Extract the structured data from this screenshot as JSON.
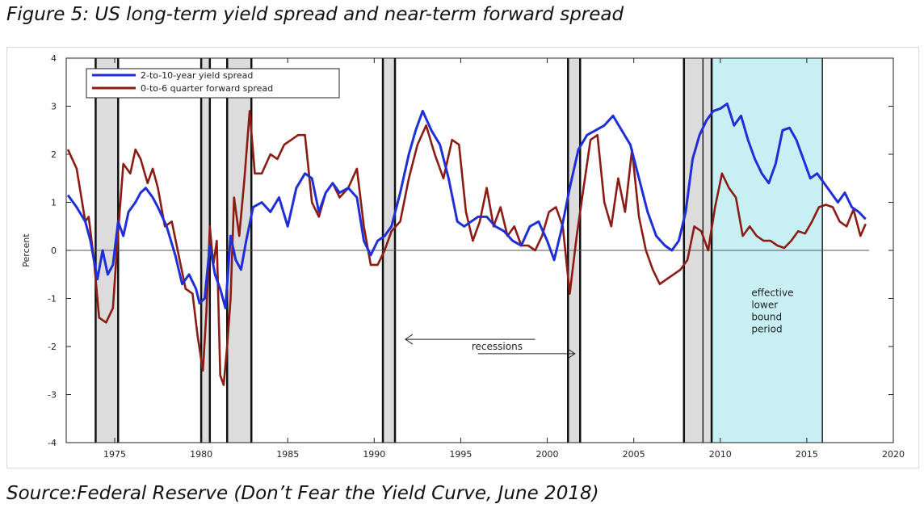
{
  "figure_title": "Figure 5: US long-term yield spread and near-term forward spread",
  "source": "Source:Federal Reserve (Don’t Fear the Yield Curve, June 2018)",
  "colors": {
    "yield_spread": "#1f2fd6",
    "forward_spread": "#8b1c14",
    "elb_shade": "#c8f0f4",
    "recession_shade": "#dcdcdc"
  },
  "chart_data": {
    "type": "line",
    "ylabel": "Percent",
    "xlabel": "",
    "xlim": [
      1972.2,
      2020
    ],
    "ylim": [
      -4,
      4
    ],
    "x_ticks": [
      1975,
      1980,
      1985,
      1990,
      1995,
      2000,
      2005,
      2010,
      2015,
      2020
    ],
    "y_ticks": [
      4,
      3,
      2,
      1,
      0,
      -1,
      -2,
      -3,
      -4
    ],
    "grid": false,
    "legend_position": "top-left",
    "recessions": [
      [
        1973.9,
        1975.2
      ],
      [
        1980.0,
        1980.5
      ],
      [
        1981.5,
        1982.9
      ],
      [
        1990.5,
        1991.2
      ],
      [
        2001.2,
        2001.9
      ],
      [
        2007.9,
        2009.5
      ]
    ],
    "effective_lower_bound": [
      2009.0,
      2015.9
    ],
    "annotations": {
      "recessions_label": "recessions",
      "elb_label_lines": [
        "effective",
        "lower",
        "bound",
        "period"
      ]
    },
    "series": [
      {
        "name": "2-to-10-year yield spread",
        "x": [
          1972.3,
          1972.8,
          1973.3,
          1973.6,
          1974.0,
          1974.3,
          1974.6,
          1974.9,
          1975.2,
          1975.5,
          1975.8,
          1976.2,
          1976.5,
          1976.8,
          1977.2,
          1977.5,
          1978.0,
          1978.5,
          1978.9,
          1979.3,
          1979.7,
          1979.9,
          1980.2,
          1980.5,
          1980.8,
          1981.1,
          1981.4,
          1981.7,
          1982.0,
          1982.3,
          1982.6,
          1983.0,
          1983.5,
          1984.0,
          1984.5,
          1985.0,
          1985.5,
          1986.0,
          1986.4,
          1986.8,
          1987.2,
          1987.6,
          1988.0,
          1988.5,
          1989.0,
          1989.4,
          1989.8,
          1990.2,
          1990.6,
          1991.0,
          1991.5,
          1992.0,
          1992.4,
          1992.8,
          1993.3,
          1993.8,
          1994.3,
          1994.8,
          1995.2,
          1995.6,
          1996.0,
          1996.5,
          1997.0,
          1997.5,
          1998.0,
          1998.5,
          1999.0,
          1999.5,
          2000.0,
          2000.4,
          2000.8,
          2001.3,
          2001.8,
          2002.3,
          2002.8,
          2003.3,
          2003.8,
          2004.3,
          2004.8,
          2005.3,
          2005.8,
          2006.3,
          2006.8,
          2007.2,
          2007.6,
          2008.0,
          2008.4,
          2008.8,
          2009.2,
          2009.6,
          2010.0,
          2010.4,
          2010.8,
          2011.2,
          2011.6,
          2012.0,
          2012.4,
          2012.8,
          2013.2,
          2013.6,
          2014.0,
          2014.4,
          2014.8,
          2015.2,
          2015.6,
          2016.0,
          2016.4,
          2016.8,
          2017.2,
          2017.6,
          2018.0,
          2018.4
        ],
        "values": [
          1.15,
          0.9,
          0.6,
          0.2,
          -0.6,
          0.0,
          -0.5,
          -0.3,
          0.6,
          0.3,
          0.8,
          1.0,
          1.2,
          1.3,
          1.1,
          0.9,
          0.5,
          -0.1,
          -0.7,
          -0.5,
          -0.8,
          -1.1,
          -1.0,
          0.1,
          -0.5,
          -0.8,
          -1.2,
          0.3,
          -0.2,
          -0.4,
          0.2,
          0.9,
          1.0,
          0.8,
          1.1,
          0.5,
          1.3,
          1.6,
          1.5,
          0.8,
          1.2,
          1.4,
          1.2,
          1.3,
          1.1,
          0.2,
          -0.1,
          0.2,
          0.3,
          0.5,
          1.2,
          2.0,
          2.5,
          2.9,
          2.5,
          2.2,
          1.5,
          0.6,
          0.5,
          0.6,
          0.7,
          0.7,
          0.5,
          0.4,
          0.2,
          0.1,
          0.5,
          0.6,
          0.2,
          -0.2,
          0.4,
          1.3,
          2.1,
          2.4,
          2.5,
          2.6,
          2.8,
          2.5,
          2.2,
          1.5,
          0.8,
          0.3,
          0.1,
          0.0,
          0.2,
          0.8,
          1.9,
          2.4,
          2.7,
          2.9,
          2.95,
          3.05,
          2.6,
          2.8,
          2.3,
          1.9,
          1.6,
          1.4,
          1.8,
          2.5,
          2.55,
          2.3,
          1.9,
          1.5,
          1.6,
          1.4,
          1.2,
          1.0,
          1.2,
          0.9,
          0.8,
          0.65
        ]
      },
      {
        "name": "0-to-6 quarter forward spread",
        "x": [
          1972.3,
          1972.8,
          1973.3,
          1973.5,
          1973.8,
          1974.1,
          1974.5,
          1974.9,
          1975.2,
          1975.5,
          1975.9,
          1976.2,
          1976.5,
          1976.9,
          1977.2,
          1977.5,
          1977.9,
          1978.3,
          1978.7,
          1979.1,
          1979.5,
          1979.8,
          1980.1,
          1980.3,
          1980.5,
          1980.7,
          1980.9,
          1981.1,
          1981.3,
          1981.5,
          1981.7,
          1981.9,
          1982.2,
          1982.5,
          1982.8,
          1983.1,
          1983.5,
          1984.0,
          1984.4,
          1984.8,
          1985.2,
          1985.6,
          1986.0,
          1986.4,
          1986.8,
          1987.2,
          1987.6,
          1988.0,
          1988.5,
          1989.0,
          1989.4,
          1989.8,
          1990.2,
          1990.6,
          1991.0,
          1991.5,
          1992.0,
          1992.5,
          1993.0,
          1993.5,
          1994.0,
          1994.5,
          1994.9,
          1995.3,
          1995.7,
          1996.1,
          1996.5,
          1996.9,
          1997.3,
          1997.7,
          1998.1,
          1998.5,
          1998.9,
          1999.3,
          1999.7,
          2000.1,
          2000.5,
          2000.9,
          2001.3,
          2001.7,
          2002.1,
          2002.5,
          2002.9,
          2003.3,
          2003.7,
          2004.1,
          2004.5,
          2004.9,
          2005.3,
          2005.7,
          2006.1,
          2006.5,
          2006.9,
          2007.3,
          2007.7,
          2008.1,
          2008.5,
          2008.9,
          2009.3,
          2009.7,
          2010.1,
          2010.5,
          2010.9,
          2011.3,
          2011.7,
          2012.1,
          2012.5,
          2012.9,
          2013.3,
          2013.7,
          2014.1,
          2014.5,
          2014.9,
          2015.3,
          2015.7,
          2016.1,
          2016.5,
          2016.9,
          2017.3,
          2017.7,
          2018.1,
          2018.4
        ],
        "values": [
          2.1,
          1.7,
          0.6,
          0.7,
          -0.2,
          -1.4,
          -1.5,
          -1.2,
          0.4,
          1.8,
          1.6,
          2.1,
          1.9,
          1.4,
          1.7,
          1.3,
          0.5,
          0.6,
          -0.1,
          -0.8,
          -0.9,
          -1.8,
          -2.5,
          -1.3,
          0.5,
          -0.3,
          0.2,
          -2.6,
          -2.8,
          -2.0,
          -1.0,
          1.1,
          0.3,
          1.5,
          2.9,
          1.6,
          1.6,
          2.0,
          1.9,
          2.2,
          2.3,
          2.4,
          2.4,
          1.0,
          0.7,
          1.2,
          1.4,
          1.1,
          1.3,
          1.7,
          0.5,
          -0.3,
          -0.3,
          0.0,
          0.4,
          0.6,
          1.5,
          2.2,
          2.6,
          2.0,
          1.5,
          2.3,
          2.2,
          0.8,
          0.2,
          0.6,
          1.3,
          0.5,
          0.9,
          0.3,
          0.5,
          0.1,
          0.1,
          0.0,
          0.3,
          0.8,
          0.9,
          0.5,
          -0.9,
          0.3,
          1.3,
          2.3,
          2.4,
          1.0,
          0.5,
          1.5,
          0.8,
          2.1,
          0.7,
          0.0,
          -0.4,
          -0.7,
          -0.6,
          -0.5,
          -0.4,
          -0.2,
          0.5,
          0.4,
          0.0,
          0.9,
          1.6,
          1.3,
          1.1,
          0.3,
          0.5,
          0.3,
          0.2,
          0.2,
          0.1,
          0.05,
          0.2,
          0.4,
          0.35,
          0.6,
          0.9,
          0.95,
          0.9,
          0.6,
          0.5,
          0.85,
          0.3,
          0.55
        ]
      }
    ]
  }
}
